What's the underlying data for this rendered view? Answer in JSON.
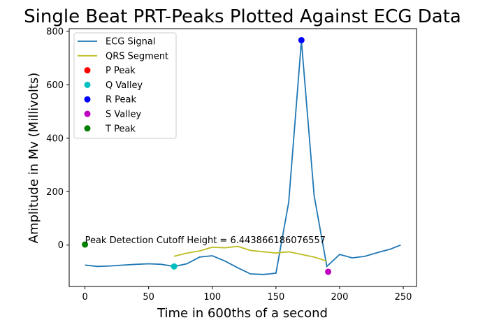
{
  "chart_data": {
    "type": "line",
    "title": "Single Beat PRT-Peaks Plotted Against ECG Data",
    "xlabel": "Time in 600ths of a second",
    "ylabel": "Amplitude in Mv (Millivolts)",
    "xlim": [
      -12.4,
      260.4
    ],
    "ylim": [
      -155,
      810
    ],
    "xticks": [
      0,
      50,
      100,
      150,
      200,
      250
    ],
    "yticks": [
      0,
      200,
      400,
      600,
      800
    ],
    "grid": false,
    "legend_position": "upper-left",
    "annotation": "Peak Detection Cutoff Height = 6.443866186076557",
    "annotation_at": [
      0,
      2
    ],
    "series": [
      {
        "name": "ECG Signal",
        "kind": "line",
        "color": "#1f77b4",
        "x": [
          0,
          10,
          20,
          30,
          40,
          50,
          60,
          70,
          80,
          90,
          100,
          110,
          120,
          130,
          140,
          145,
          150,
          160,
          170,
          180,
          190,
          200,
          210,
          220,
          230,
          240,
          248
        ],
        "y": [
          -75,
          -80,
          -78,
          -75,
          -72,
          -70,
          -72,
          -80,
          -70,
          -45,
          -40,
          -60,
          -85,
          -108,
          -110,
          -108,
          -105,
          160,
          765,
          185,
          -80,
          -35,
          -48,
          -42,
          -28,
          -15,
          0
        ]
      },
      {
        "name": "QRS Segment",
        "kind": "line",
        "color": "#bcbd22",
        "x": [
          70,
          80,
          90,
          100,
          110,
          120,
          130,
          140,
          150,
          160,
          170,
          180,
          190
        ],
        "y": [
          -42,
          -30,
          -22,
          -8,
          -10,
          -5,
          -20,
          -25,
          -30,
          -25,
          -35,
          -45,
          -60
        ]
      },
      {
        "name": "P Peak",
        "kind": "marker",
        "color": "#ff0000",
        "x": [],
        "y": []
      },
      {
        "name": "Q Valley",
        "kind": "marker",
        "color": "#00bfbf",
        "x": [
          70
        ],
        "y": [
          -80
        ]
      },
      {
        "name": "R Peak",
        "kind": "marker",
        "color": "#0000ff",
        "x": [
          170
        ],
        "y": [
          767
        ]
      },
      {
        "name": "S Valley",
        "kind": "marker",
        "color": "#bf00bf",
        "x": [
          191
        ],
        "y": [
          -100
        ]
      },
      {
        "name": "T Peak",
        "kind": "marker",
        "color": "#008000",
        "x": [
          0
        ],
        "y": [
          2
        ]
      }
    ]
  }
}
